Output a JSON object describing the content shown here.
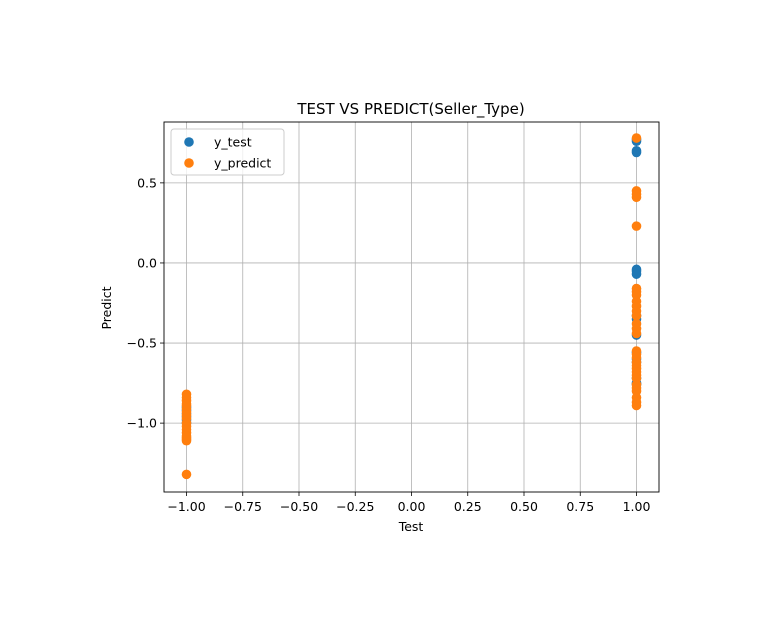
{
  "chart_data": {
    "type": "scatter",
    "title": "TEST VS PREDICT(Seller_Type)",
    "xlabel": "Test",
    "ylabel": "Predict",
    "xlim": [
      -1.1,
      1.1
    ],
    "ylim": [
      -1.43,
      0.88
    ],
    "xticks": [
      -1.0,
      -0.75,
      -0.5,
      -0.25,
      0.0,
      0.25,
      0.5,
      0.75,
      1.0
    ],
    "xtick_labels": [
      "−1.00",
      "−0.75",
      "−0.50",
      "−0.25",
      "0.00",
      "0.25",
      "0.50",
      "0.75",
      "1.00"
    ],
    "yticks": [
      -1.0,
      -0.5,
      0.0,
      0.5
    ],
    "ytick_labels": [
      "−1.0",
      "−0.5",
      "0.0",
      "0.5"
    ],
    "grid": true,
    "legend_position": "top-left",
    "series": [
      {
        "name": "y_test",
        "color": "#1f77b4",
        "x": [
          1,
          1,
          1,
          1,
          1,
          1,
          1,
          1,
          1,
          1,
          1,
          1,
          1,
          1,
          1,
          1,
          -1,
          -1,
          -1,
          -1,
          -1,
          -1
        ],
        "y": [
          0.77,
          0.76,
          0.7,
          0.69,
          -0.04,
          -0.05,
          -0.07,
          -0.33,
          -0.35,
          -0.45,
          -0.72,
          -0.75,
          -0.76,
          -0.56,
          -0.6,
          -0.62,
          -0.9,
          -0.92,
          -0.94,
          -0.96,
          -0.98,
          -1.0
        ]
      },
      {
        "name": "y_predict",
        "color": "#ff7f0e",
        "x": [
          1,
          1,
          1,
          1,
          1,
          1,
          1,
          1,
          1,
          1,
          1,
          1,
          1,
          1,
          1,
          1,
          1,
          1,
          1,
          1,
          1,
          1,
          1,
          1,
          1,
          1,
          1,
          1,
          1,
          1,
          -1,
          -1,
          -1,
          -1,
          -1,
          -1,
          -1,
          -1,
          -1,
          -1,
          -1,
          -1,
          -1,
          -1,
          -1,
          -1,
          -1,
          -1
        ],
        "y": [
          0.78,
          0.45,
          0.43,
          0.41,
          0.23,
          -0.16,
          -0.18,
          -0.2,
          -0.24,
          -0.27,
          -0.3,
          -0.33,
          -0.38,
          -0.41,
          -0.44,
          -0.55,
          -0.57,
          -0.59,
          -0.62,
          -0.64,
          -0.66,
          -0.68,
          -0.7,
          -0.72,
          -0.76,
          -0.78,
          -0.8,
          -0.84,
          -0.87,
          -0.89,
          -0.82,
          -0.84,
          -0.86,
          -0.88,
          -0.91,
          -0.93,
          -0.95,
          -0.97,
          -1.0,
          -1.02,
          -1.04,
          -1.06,
          -1.08,
          -1.1,
          -1.11,
          -1.09,
          -0.89,
          -1.32
        ]
      }
    ]
  }
}
